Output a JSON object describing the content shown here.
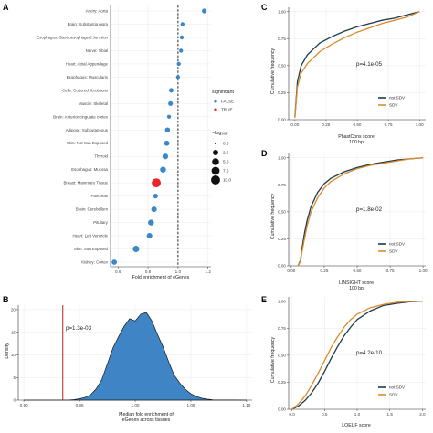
{
  "chart_data": [
    {
      "panel": "A",
      "type": "scatter",
      "xlabel": "Fold enrichment of eGenes",
      "xlim": [
        0.55,
        1.22
      ],
      "x_ticks": [
        0.6,
        0.8,
        1.0,
        1.2
      ],
      "x_tick_labels": [
        "0.6",
        "0.8",
        "1.0",
        "1.2"
      ],
      "reference_line": 1.0,
      "categories": [
        "Artery: Aorta",
        "Brain: Substantia nigra",
        "Esophagus: Gastroesophageal Junction",
        "Nerve: Tibial",
        "Heart: Atrial Appendage",
        "Esophagus: Muscularis",
        "Cells: Cultured fibroblasts",
        "Muscle: Skeletal",
        "Brain: Anterior cingulate cortex",
        "Adipose: Subcutaneous",
        "Skin: Not Sun Exposed",
        "Thyroid",
        "Esophagus: Mucosa",
        "Breast: Mammary Tissue",
        "Pancreas",
        "Brain: Cerebellum",
        "Pituitary",
        "Heart: Left Ventricle",
        "Skin: Sun Exposed",
        "Kidney: Cortex"
      ],
      "x": [
        1.175,
        1.03,
        1.025,
        1.02,
        1.005,
        1.0,
        0.955,
        0.95,
        0.94,
        0.93,
        0.925,
        0.915,
        0.9,
        0.855,
        0.85,
        0.84,
        0.82,
        0.81,
        0.72,
        0.575
      ],
      "neg_log10_p": [
        1.6,
        0.9,
        0.9,
        0.9,
        0.9,
        0.9,
        1.4,
        1.6,
        0.8,
        2.0,
        2.3,
        2.9,
        3.2,
        10.0,
        1.6,
        2.6,
        3.1,
        2.7,
        4.0,
        2.3
      ],
      "significant": [
        false,
        false,
        false,
        false,
        false,
        false,
        false,
        false,
        false,
        false,
        false,
        false,
        false,
        true,
        false,
        false,
        false,
        false,
        false,
        false
      ],
      "legend": {
        "significant_title": "significant",
        "significant_labels": [
          "FALSE",
          "TRUE"
        ],
        "size_title": "−log₁₀p",
        "size_labels": [
          "0.0",
          "2.5",
          "5.0",
          "7.5",
          "10.0"
        ],
        "size_values": [
          0.0,
          2.5,
          5.0,
          7.5,
          10.0
        ]
      },
      "colors": {
        "false": "#3a87c9",
        "true": "#e8262b"
      }
    },
    {
      "panel": "B",
      "type": "area",
      "xlabel": "Median fold enrichment of\neGenes across tissues",
      "ylabel": "Density",
      "xlim": [
        0.895,
        1.105
      ],
      "ylim": [
        0,
        21
      ],
      "x_ticks": [
        0.9,
        0.95,
        1.0,
        1.05,
        1.1
      ],
      "x_tick_labels": [
        "0.90",
        "0.95",
        "1.00",
        "1.05",
        "1.10"
      ],
      "y_ticks": [
        0,
        5,
        10,
        15,
        20
      ],
      "y_tick_labels": [
        "0",
        "5",
        "10",
        "15",
        "20"
      ],
      "x": [
        0.9,
        0.94,
        0.945,
        0.95,
        0.955,
        0.96,
        0.965,
        0.97,
        0.975,
        0.98,
        0.985,
        0.99,
        0.995,
        1.0,
        1.005,
        1.01,
        1.015,
        1.02,
        1.025,
        1.03,
        1.035,
        1.04,
        1.045,
        1.05,
        1.055,
        1.06,
        1.065,
        1.07,
        1.1
      ],
      "y": [
        0,
        0,
        0.1,
        0.3,
        0.6,
        1.2,
        2.5,
        4.5,
        8.0,
        11.5,
        14.0,
        16.3,
        18.0,
        17.5,
        19.0,
        19.4,
        17.5,
        14.5,
        11.8,
        8.5,
        5.5,
        3.8,
        2.4,
        1.4,
        0.8,
        0.4,
        0.2,
        0.05,
        0
      ],
      "observed_line": 0.935,
      "annotation": "p=1.3e-03",
      "fill_color": "#3f84c5",
      "line_color": "#b22222"
    },
    {
      "panel": "C",
      "type": "line",
      "xlabel": "PhastCons score\n100 bp",
      "ylabel": "Cumulative frequency",
      "xlim": [
        -0.05,
        1.05
      ],
      "ylim": [
        0,
        1.04
      ],
      "x_ticks": [
        0,
        0.25,
        0.5,
        0.75,
        1.0
      ],
      "x_tick_labels": [
        "0.00",
        "0.25",
        "0.50",
        "0.75",
        "1.00"
      ],
      "y_ticks": [
        0,
        0.25,
        0.5,
        0.75,
        1.0
      ],
      "y_tick_labels": [
        "0.00",
        "0.25",
        "0.50",
        "0.75",
        "1.00"
      ],
      "annotation": "p=4.1e-05",
      "legend_labels": [
        "not SDV",
        "SDV"
      ],
      "series": [
        {
          "name": "not SDV",
          "color": "#1c3a4a",
          "x": [
            0,
            0.02,
            0.05,
            0.1,
            0.2,
            0.3,
            0.4,
            0.5,
            0.6,
            0.7,
            0.8,
            0.9,
            0.95,
            1.0
          ],
          "y": [
            0.02,
            0.35,
            0.5,
            0.6,
            0.71,
            0.77,
            0.82,
            0.86,
            0.89,
            0.92,
            0.94,
            0.97,
            0.985,
            1.0
          ]
        },
        {
          "name": "SDV",
          "color": "#de8a2a",
          "x": [
            0,
            0.02,
            0.05,
            0.1,
            0.2,
            0.3,
            0.4,
            0.5,
            0.6,
            0.7,
            0.8,
            0.9,
            0.95,
            1.0
          ],
          "y": [
            0.02,
            0.3,
            0.43,
            0.52,
            0.63,
            0.7,
            0.76,
            0.81,
            0.85,
            0.89,
            0.92,
            0.95,
            0.975,
            1.0
          ]
        }
      ]
    },
    {
      "panel": "D",
      "type": "line",
      "xlabel": "LINSIGHT score\n100 bp",
      "ylabel": "Cumulative frequency",
      "xlim": [
        -0.02,
        1.02
      ],
      "ylim": [
        0,
        1.04
      ],
      "x_ticks": [
        0,
        0.25,
        0.5,
        0.75,
        1.0
      ],
      "x_tick_labels": [
        "0.00",
        "0.25",
        "0.50",
        "0.75",
        "1.00"
      ],
      "y_ticks": [
        0,
        0.25,
        0.5,
        0.75,
        1.0
      ],
      "y_tick_labels": [
        "0.00",
        "0.25",
        "0.50",
        "0.75",
        "1.00"
      ],
      "annotation": "p=1.8e-02",
      "legend_labels": [
        "not SDV",
        "SDV"
      ],
      "series": [
        {
          "name": "not SDV",
          "color": "#1c3a4a",
          "x": [
            0.05,
            0.07,
            0.08,
            0.1,
            0.12,
            0.15,
            0.2,
            0.25,
            0.3,
            0.4,
            0.5,
            0.6,
            0.7,
            0.8,
            0.9,
            1.0
          ],
          "y": [
            0,
            0.05,
            0.15,
            0.3,
            0.42,
            0.55,
            0.68,
            0.76,
            0.81,
            0.87,
            0.91,
            0.94,
            0.96,
            0.98,
            0.99,
            1.0
          ]
        },
        {
          "name": "SDV",
          "color": "#de8a2a",
          "x": [
            0.05,
            0.07,
            0.08,
            0.1,
            0.12,
            0.15,
            0.2,
            0.25,
            0.3,
            0.4,
            0.5,
            0.6,
            0.7,
            0.8,
            0.9,
            1.0
          ],
          "y": [
            0,
            0.04,
            0.12,
            0.25,
            0.37,
            0.5,
            0.63,
            0.72,
            0.78,
            0.85,
            0.9,
            0.93,
            0.95,
            0.97,
            0.99,
            1.0
          ]
        }
      ]
    },
    {
      "panel": "E",
      "type": "line",
      "xlabel": "LOEUF score",
      "ylabel": "Cumulative frequency",
      "xlim": [
        -0.05,
        2.05
      ],
      "ylim": [
        0,
        1.04
      ],
      "x_ticks": [
        0,
        0.5,
        1.0,
        1.5,
        2.0
      ],
      "x_tick_labels": [
        "0.0",
        "0.5",
        "1.0",
        "1.5",
        "2.0"
      ],
      "y_ticks": [
        0,
        0.25,
        0.5,
        0.75,
        1.0
      ],
      "y_tick_labels": [
        "0.00",
        "0.25",
        "0.50",
        "0.75",
        "1.00"
      ],
      "annotation": "p=4.2e-10",
      "legend_labels": [
        "not SDV",
        "SDV"
      ],
      "series": [
        {
          "name": "not SDV",
          "color": "#1c3a4a",
          "x": [
            0,
            0.1,
            0.2,
            0.3,
            0.4,
            0.5,
            0.6,
            0.7,
            0.8,
            0.9,
            1.0,
            1.2,
            1.4,
            1.6,
            1.8,
            2.0
          ],
          "y": [
            0,
            0.03,
            0.08,
            0.15,
            0.24,
            0.35,
            0.47,
            0.58,
            0.68,
            0.76,
            0.83,
            0.91,
            0.96,
            0.98,
            0.995,
            1.0
          ]
        },
        {
          "name": "SDV",
          "color": "#de8a2a",
          "x": [
            0,
            0.1,
            0.2,
            0.3,
            0.4,
            0.5,
            0.6,
            0.7,
            0.8,
            0.9,
            1.0,
            1.2,
            1.4,
            1.6,
            1.8,
            2.0
          ],
          "y": [
            0,
            0.05,
            0.12,
            0.22,
            0.33,
            0.45,
            0.57,
            0.67,
            0.76,
            0.83,
            0.88,
            0.94,
            0.97,
            0.99,
            0.998,
            1.0
          ]
        }
      ]
    }
  ]
}
